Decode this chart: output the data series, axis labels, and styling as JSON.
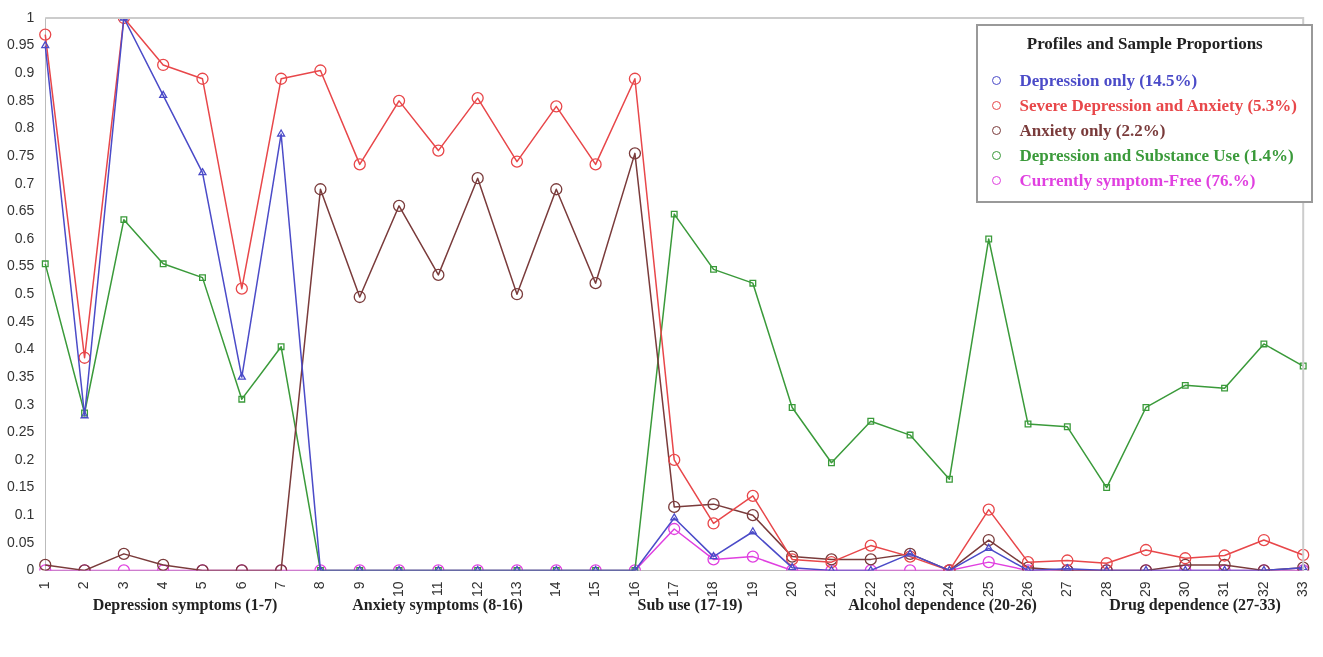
{
  "chart_data": {
    "type": "line",
    "legend_title": "Profiles and Sample Proportions",
    "legend": "top right",
    "grid": false,
    "line_style": "solid",
    "categories": [
      "1",
      "2",
      "3",
      "4",
      "5",
      "6",
      "7",
      "8",
      "9",
      "10",
      "11",
      "12",
      "13",
      "14",
      "15",
      "16",
      "17",
      "18",
      "19",
      "20",
      "21",
      "22",
      "23",
      "24",
      "25",
      "26",
      "27",
      "28",
      "29",
      "30",
      "31",
      "32",
      "33"
    ],
    "ylim": [
      0,
      1
    ],
    "yticks": [
      0,
      0.05,
      0.1,
      0.15,
      0.2,
      0.25,
      0.3,
      0.35,
      0.4,
      0.45,
      0.5,
      0.55,
      0.6,
      0.65,
      0.7,
      0.75,
      0.8,
      0.85,
      0.9,
      0.95,
      1
    ],
    "series": [
      {
        "name": "Depression only (14.5%)",
        "color": "#4b4bc8",
        "marker": "triangle",
        "values": [
          0.95,
          0.28,
          1.0,
          0.86,
          0.72,
          0.35,
          0.79,
          0,
          0,
          0,
          0,
          0,
          0,
          0,
          0,
          0,
          0.095,
          0.025,
          0.07,
          0.005,
          0,
          0,
          0.03,
          0,
          0.04,
          0,
          0.003,
          0,
          0,
          0,
          0,
          0,
          0.005
        ]
      },
      {
        "name": "Severe Depression and Anxiety (5.3%)",
        "color": "#e8474a",
        "marker": "circle",
        "values": [
          0.97,
          0.385,
          1.0,
          0.915,
          0.89,
          0.51,
          0.89,
          0.905,
          0.735,
          0.85,
          0.76,
          0.855,
          0.74,
          0.84,
          0.735,
          0.89,
          0.2,
          0.085,
          0.135,
          0.02,
          0.015,
          0.045,
          0.025,
          0,
          0.11,
          0.015,
          0.018,
          0.013,
          0.037,
          0.022,
          0.027,
          0.055,
          0.028
        ]
      },
      {
        "name": "Anxiety only (2.2%)",
        "color": "#7a3b3b",
        "marker": "circle",
        "values": [
          0.01,
          0,
          0.03,
          0.01,
          0,
          0,
          0,
          0.69,
          0.495,
          0.66,
          0.535,
          0.71,
          0.5,
          0.69,
          0.52,
          0.755,
          0.115,
          0.12,
          0.1,
          0.025,
          0.02,
          0.02,
          0.03,
          0,
          0.055,
          0.005,
          0,
          0,
          0,
          0.01,
          0.01,
          0,
          0.005
        ]
      },
      {
        "name": "Depression and Substance Use (1.4%)",
        "color": "#3a9a3a",
        "marker": "square",
        "values": [
          0.555,
          0.285,
          0.635,
          0.555,
          0.53,
          0.31,
          0.405,
          0,
          0,
          0,
          0,
          0,
          0,
          0,
          0,
          0,
          0.645,
          0.545,
          0.52,
          0.295,
          0.195,
          0.27,
          0.245,
          0.165,
          0.6,
          0.265,
          0.26,
          0.15,
          0.295,
          0.335,
          0.33,
          0.41,
          0.37
        ]
      },
      {
        "name": "Currently symptom-Free (76.%)",
        "color": "#e040e0",
        "marker": "circle",
        "values": [
          0,
          0,
          0,
          0,
          0,
          0,
          0,
          0,
          0,
          0,
          0,
          0,
          0,
          0,
          0,
          0,
          0.075,
          0.02,
          0.025,
          0,
          0,
          0,
          0,
          0,
          0.015,
          0,
          0,
          0,
          0,
          0,
          0,
          0,
          0
        ]
      }
    ],
    "annotations": [
      "Depression symptoms (1-7)",
      "Anxiety symptoms (8-16)",
      "Sub use (17-19)",
      "Alcohol dependence (20-26)",
      "Drug dependence (27-33)"
    ]
  }
}
